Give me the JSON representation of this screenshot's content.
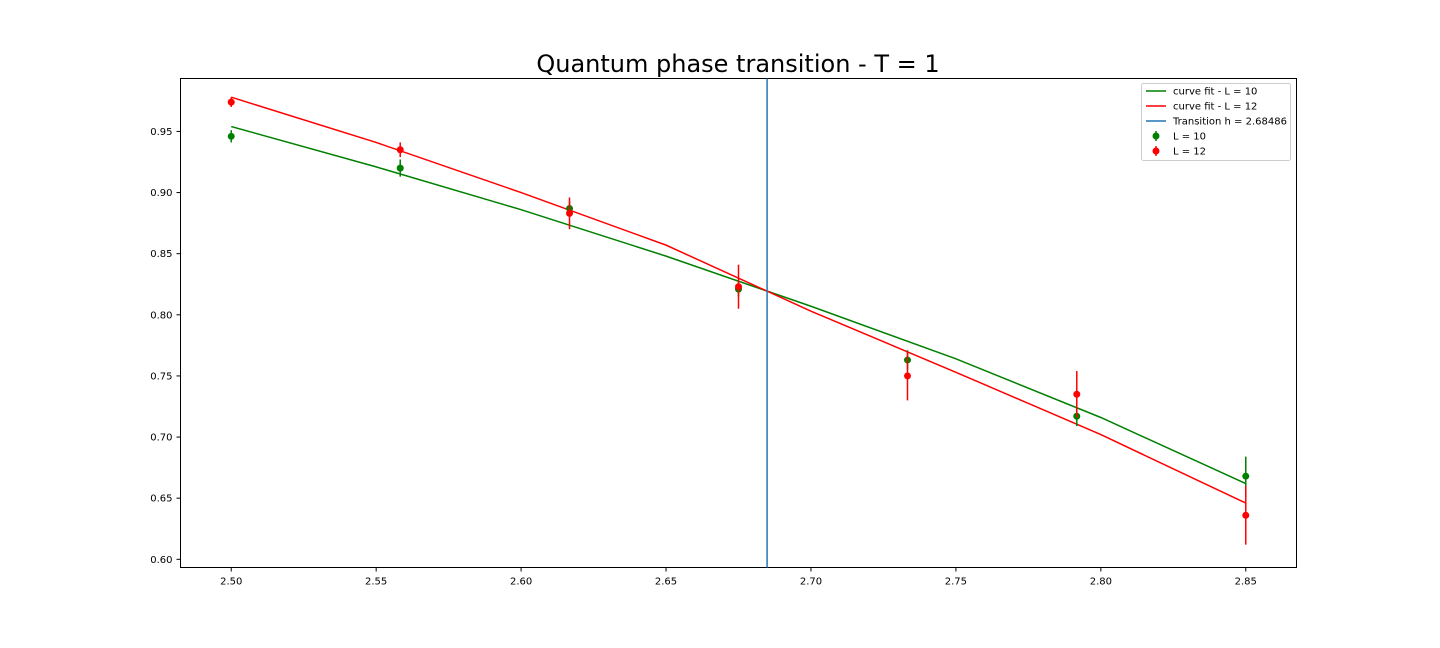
{
  "chart_data": {
    "type": "scatter",
    "title": "Quantum phase transition - T = 1",
    "xlabel": "",
    "ylabel": "",
    "xlim": [
      2.4825,
      2.8675
    ],
    "ylim": [
      0.5933,
      0.9933
    ],
    "xticks": [
      "2.50",
      "2.55",
      "2.60",
      "2.65",
      "2.70",
      "2.75",
      "2.80",
      "2.85"
    ],
    "xtick_values": [
      2.5,
      2.55,
      2.6,
      2.65,
      2.7,
      2.75,
      2.8,
      2.85
    ],
    "yticks": [
      "0.60",
      "0.65",
      "0.70",
      "0.75",
      "0.80",
      "0.85",
      "0.90",
      "0.95"
    ],
    "ytick_values": [
      0.6,
      0.65,
      0.7,
      0.75,
      0.8,
      0.85,
      0.9,
      0.95
    ],
    "grid": false,
    "legend_position": "top-right",
    "series": [
      {
        "name": "L = 10",
        "kind": "errorbar",
        "color": "#008000",
        "x": [
          2.5,
          2.5583,
          2.6167,
          2.675,
          2.7333,
          2.7917,
          2.85
        ],
        "y": [
          0.946,
          0.92,
          0.887,
          0.821,
          0.763,
          0.717,
          0.668
        ],
        "yerr": [
          0.005,
          0.007,
          0.006,
          0.006,
          0.008,
          0.008,
          0.016
        ]
      },
      {
        "name": "L = 12",
        "kind": "errorbar",
        "color": "#ff0000",
        "x": [
          2.5,
          2.5583,
          2.6167,
          2.675,
          2.7333,
          2.7917,
          2.85
        ],
        "y": [
          0.974,
          0.935,
          0.883,
          0.823,
          0.75,
          0.735,
          0.636
        ],
        "yerr": [
          0.004,
          0.006,
          0.013,
          0.018,
          0.02,
          0.019,
          0.024
        ]
      },
      {
        "name": "curve fit - L = 10",
        "kind": "line",
        "color": "#008000",
        "x": [
          2.5,
          2.55,
          2.6,
          2.65,
          2.7,
          2.75,
          2.8,
          2.85
        ],
        "y": [
          0.954,
          0.921,
          0.886,
          0.848,
          0.807,
          0.764,
          0.716,
          0.662
        ]
      },
      {
        "name": "curve fit - L = 12",
        "kind": "line",
        "color": "#ff0000",
        "x": [
          2.5,
          2.55,
          2.6,
          2.65,
          2.7,
          2.75,
          2.8,
          2.85
        ],
        "y": [
          0.978,
          0.941,
          0.9,
          0.857,
          0.803,
          0.753,
          0.702,
          0.646
        ]
      }
    ],
    "vline": {
      "name": "Transition h = 2.68486",
      "x": 2.68486,
      "color": "#1f77b4"
    },
    "legend": [
      {
        "label": "curve fit - L = 10",
        "kind": "line",
        "color": "#008000"
      },
      {
        "label": "curve fit - L = 12",
        "kind": "line",
        "color": "#ff0000"
      },
      {
        "label": "Transition h = 2.68486",
        "kind": "line",
        "color": "#1f77b4"
      },
      {
        "label": "L = 10",
        "kind": "errorbar",
        "color": "#008000"
      },
      {
        "label": "L = 12",
        "kind": "errorbar",
        "color": "#ff0000"
      }
    ]
  }
}
